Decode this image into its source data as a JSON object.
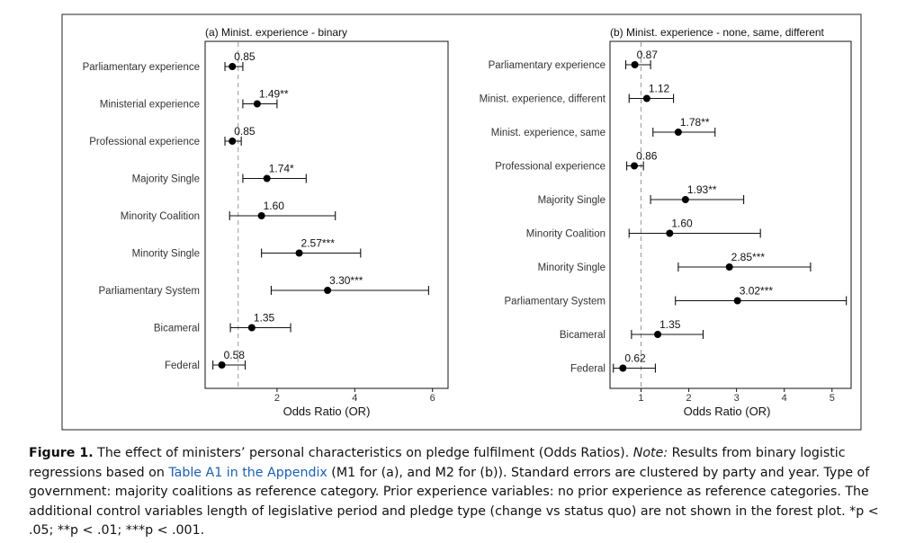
{
  "chart_data": [
    {
      "type": "forest",
      "title": "(a) Minist. experience - binary",
      "xlabel": "Odds Ratio (OR)",
      "xlim": [
        0.15,
        6.4
      ],
      "xticks": [
        2,
        4,
        6
      ],
      "reference_line": 1,
      "rows": [
        {
          "label": "Parliamentary experience",
          "or": 0.85,
          "lo": 0.66,
          "hi": 1.12,
          "text": "0.85"
        },
        {
          "label": "Ministerial experience",
          "or": 1.49,
          "lo": 1.12,
          "hi": 2.0,
          "text": "1.49**"
        },
        {
          "label": "Professional experience",
          "or": 0.85,
          "lo": 0.66,
          "hi": 1.08,
          "text": "0.85"
        },
        {
          "label": "Majority Single",
          "or": 1.74,
          "lo": 1.12,
          "hi": 2.75,
          "text": "1.74*"
        },
        {
          "label": "Minority Coalition",
          "or": 1.6,
          "lo": 0.78,
          "hi": 3.5,
          "text": "1.60"
        },
        {
          "label": "Minority Single",
          "or": 2.57,
          "lo": 1.6,
          "hi": 4.15,
          "text": "2.57***"
        },
        {
          "label": "Parliamentary System",
          "or": 3.3,
          "lo": 1.85,
          "hi": 5.9,
          "text": "3.30***"
        },
        {
          "label": "Bicameral",
          "or": 1.35,
          "lo": 0.8,
          "hi": 2.35,
          "text": "1.35"
        },
        {
          "label": "Federal",
          "or": 0.58,
          "lo": 0.35,
          "hi": 1.18,
          "text": "0.58"
        }
      ]
    },
    {
      "type": "forest",
      "title": "(b) Minist. experience - none, same, different",
      "xlabel": "Odds Ratio (OR)",
      "xlim": [
        0.35,
        5.4
      ],
      "xticks": [
        1,
        2,
        3,
        4,
        5
      ],
      "reference_line": 1,
      "rows": [
        {
          "label": "Parliamentary experience",
          "or": 0.87,
          "lo": 0.68,
          "hi": 1.2,
          "text": "0.87"
        },
        {
          "label": "Minist. experience, different",
          "or": 1.12,
          "lo": 0.75,
          "hi": 1.68,
          "text": "1.12"
        },
        {
          "label": "Minist. experience, same",
          "or": 1.78,
          "lo": 1.25,
          "hi": 2.55,
          "text": "1.78**"
        },
        {
          "label": "Professional experience",
          "or": 0.86,
          "lo": 0.7,
          "hi": 1.05,
          "text": "0.86"
        },
        {
          "label": "Majority Single",
          "or": 1.93,
          "lo": 1.2,
          "hi": 3.15,
          "text": "1.93**"
        },
        {
          "label": "Minority Coalition",
          "or": 1.6,
          "lo": 0.75,
          "hi": 3.5,
          "text": "1.60"
        },
        {
          "label": "Minority Single",
          "or": 2.85,
          "lo": 1.78,
          "hi": 4.55,
          "text": "2.85***"
        },
        {
          "label": "Parliamentary System",
          "or": 3.02,
          "lo": 1.72,
          "hi": 5.3,
          "text": "3.02***"
        },
        {
          "label": "Bicameral",
          "or": 1.35,
          "lo": 0.8,
          "hi": 2.3,
          "text": "1.35"
        },
        {
          "label": "Federal",
          "or": 0.62,
          "lo": 0.42,
          "hi": 1.3,
          "text": "0.62"
        }
      ]
    }
  ],
  "caption": {
    "label": "Figure 1.",
    "part1": " The effect of ministers’ personal characteristics on pledge fulfilment (Odds Ratios). ",
    "note_label": "Note:",
    "part2": " Results from binary logistic regressions based on ",
    "link_text": "Table A1 in the Appendix",
    "part3": " (M1 for (a), and M2 for (b)). Standard errors are clustered by party and year. Type of government: majority coalitions as reference category. Prior experience variables: no prior experience as reference categories. The additional control variables length of legislative period and pledge type (change vs status quo) are not shown in the forest plot. *p < .05; **p < .01; ***p < .001."
  }
}
